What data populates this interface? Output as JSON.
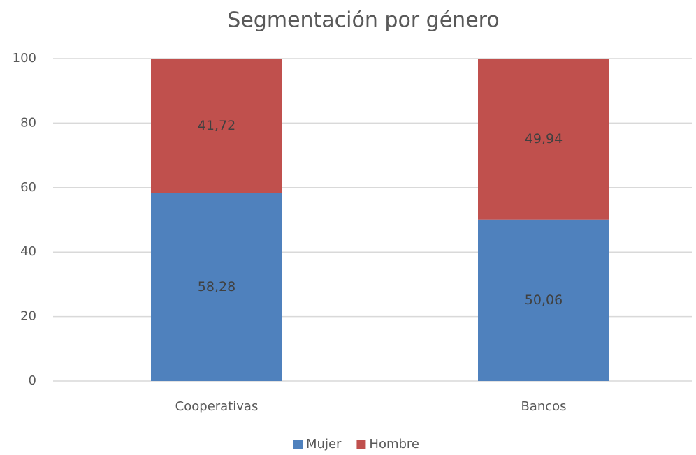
{
  "chart_data": {
    "type": "stacked_bar",
    "title": "Segmentación por género",
    "categories": [
      "Cooperativas",
      "Bancos"
    ],
    "series": [
      {
        "name": "Mujer",
        "color": "#4f81bd",
        "values": [
          58.28,
          50.06
        ],
        "value_labels": [
          "58,28",
          "50,06"
        ]
      },
      {
        "name": "Hombre",
        "color": "#c0504d",
        "values": [
          41.72,
          49.94
        ],
        "value_labels": [
          "41,72",
          "49,94"
        ]
      }
    ],
    "ylim": [
      0,
      100
    ],
    "yticks": [
      0,
      20,
      40,
      60,
      80,
      100
    ],
    "grid": true,
    "legend": "bottom"
  }
}
